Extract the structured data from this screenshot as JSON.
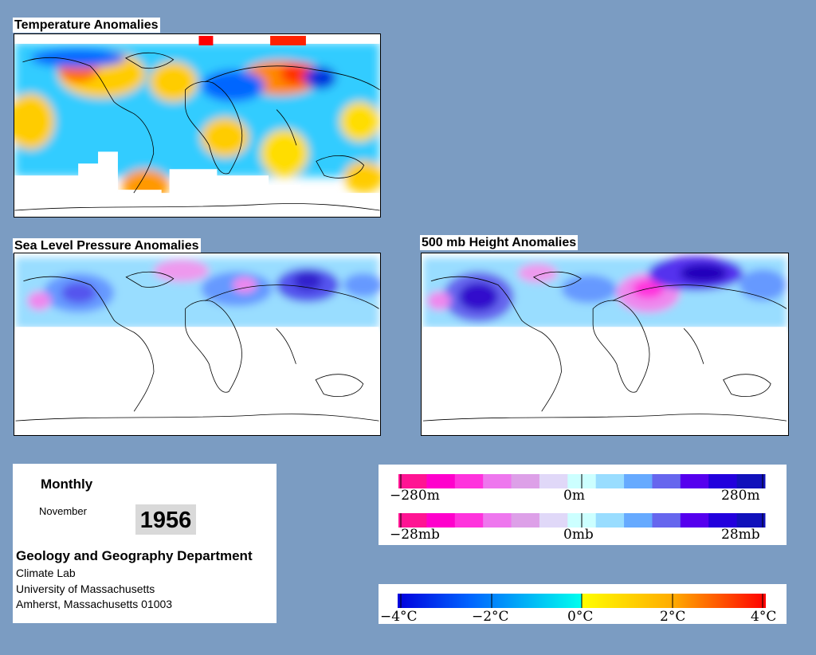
{
  "maps": {
    "temperature": {
      "title": "Temperature Anomalies"
    },
    "slp": {
      "title": "Sea Level Pressure Anomalies"
    },
    "height500": {
      "title": "500 mb Height Anomalies"
    }
  },
  "info": {
    "period_label": "Monthly",
    "month": "November",
    "year": "1956",
    "department": "Geology and Geography Department",
    "lab": "Climate Lab",
    "university": "University of Massachusetts",
    "address": "Amherst, Massachusetts 01003"
  },
  "legends": {
    "height": {
      "min_label": "−280m",
      "mid_label": "0m",
      "max_label": "280m"
    },
    "pressure": {
      "min_label": "−28mb",
      "mid_label": "0mb",
      "max_label": "28mb"
    },
    "temperature": {
      "labels": [
        "−4°C",
        "−2°C",
        "0°C",
        "2°C",
        "4°C"
      ]
    },
    "anomaly_colors": [
      "#ff1493",
      "#ff00cc",
      "#ff33dd",
      "#ee77ee",
      "#dda0e8",
      "#e0d8f8",
      "#ccffff",
      "#99ddff",
      "#66aaff",
      "#6666ee",
      "#5500ee",
      "#2200dd",
      "#1111bb"
    ],
    "temperature_colors": [
      "#0000dd",
      "#0077ff",
      "#00ccff",
      "#00ffee",
      "#ffff00",
      "#ffcc00",
      "#ff8800",
      "#ff0000"
    ]
  }
}
